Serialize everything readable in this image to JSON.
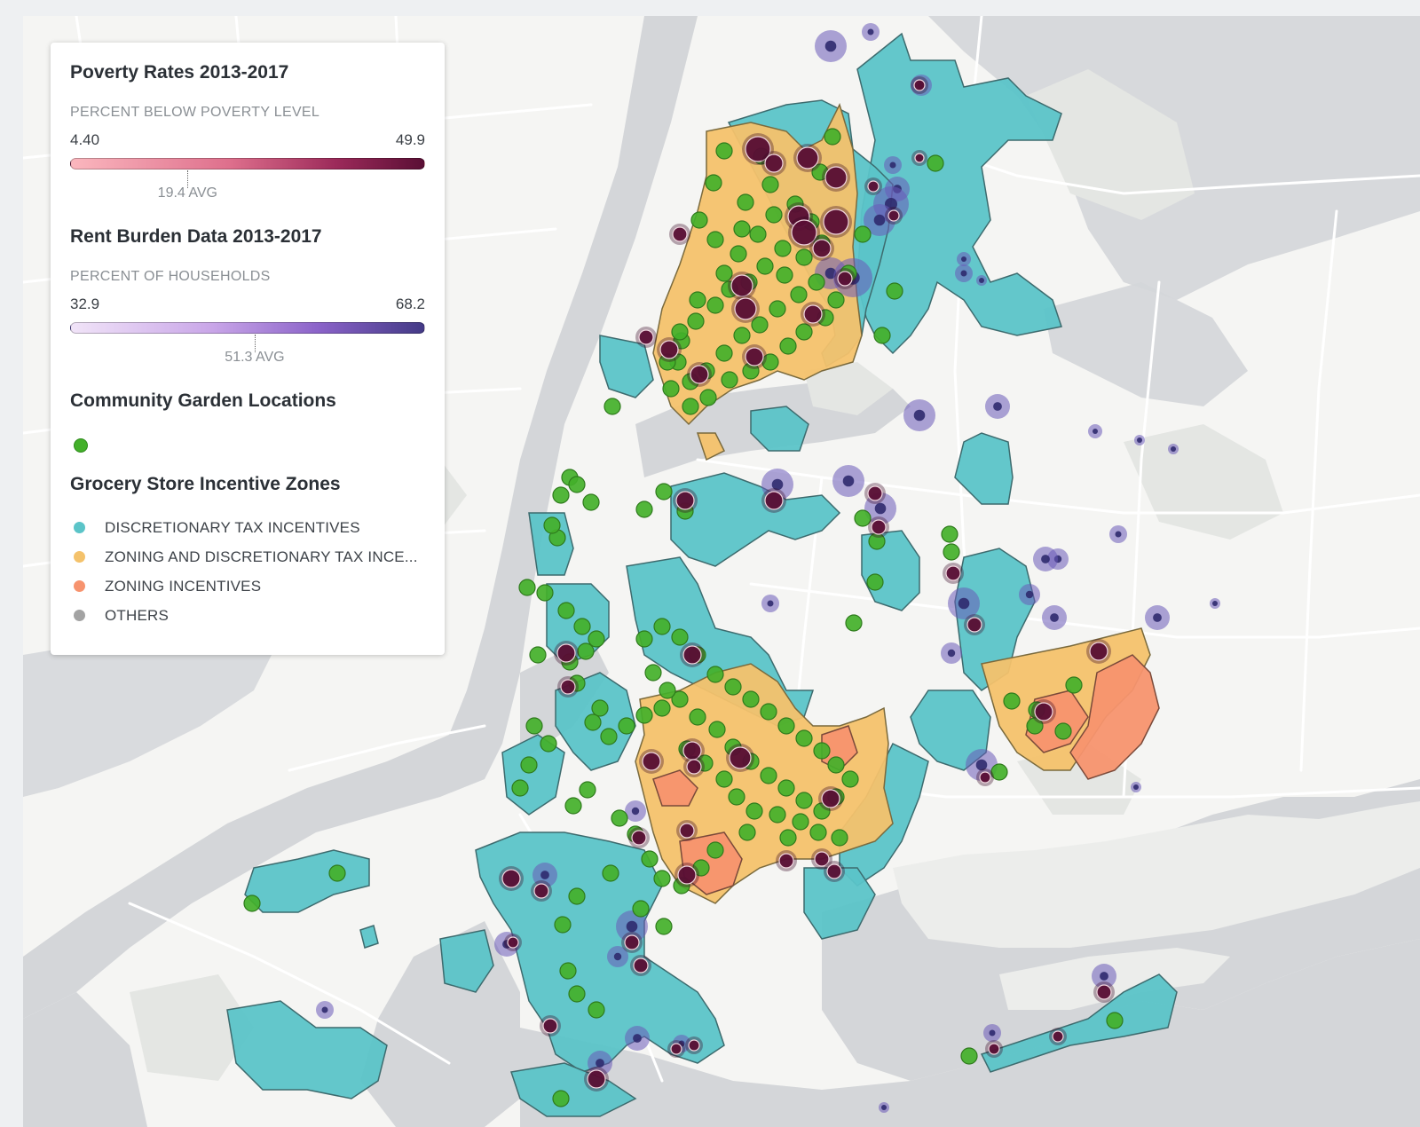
{
  "legend": {
    "poverty": {
      "title": "Poverty Rates 2013-2017",
      "subtitle": "PERCENT BELOW POVERTY LEVEL",
      "min": "4.40",
      "max": "49.9",
      "avg_label": "19.4 AVG",
      "avg_fraction": 0.33
    },
    "rent": {
      "title": "Rent Burden Data 2013-2017",
      "subtitle": "PERCENT OF HOUSEHOLDS",
      "min": "32.9",
      "max": "68.2",
      "avg_label": "51.3 AVG",
      "avg_fraction": 0.52
    },
    "gardens": {
      "title": "Community Garden Locations"
    },
    "zones": {
      "title": "Grocery Store Incentive Zones",
      "items": [
        {
          "label": "DISCRETIONARY TAX INCENTIVES",
          "color": "#5bc4c8"
        },
        {
          "label": "ZONING AND DISCRETIONARY TAX INCE...",
          "color": "#f4c26b"
        },
        {
          "label": "ZONING INCENTIVES",
          "color": "#f7936e"
        },
        {
          "label": "OTHERS",
          "color": "#a3a3a3"
        }
      ]
    }
  },
  "colors": {
    "land": "#f5f5f3",
    "water": "#d4d6d9",
    "park": "#e6e7e5",
    "road": "#ffffff",
    "discretionary": "#5bc4c8",
    "zoning_discretionary": "#f4c26b",
    "zoning": "#f7936e",
    "garden": "#43b02a",
    "poverty": "#5a0f35",
    "rent": "#433a86"
  }
}
